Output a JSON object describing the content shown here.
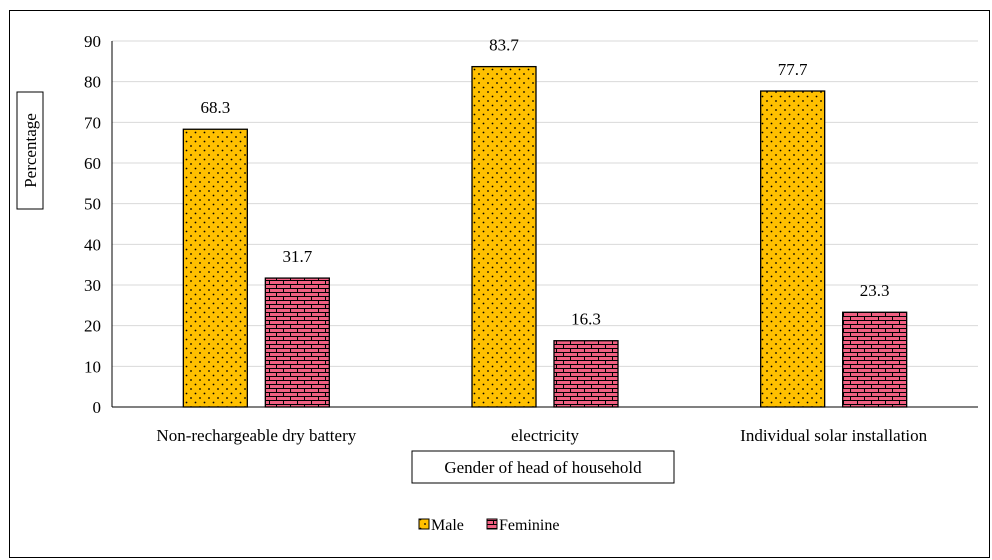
{
  "chart_data": {
    "type": "bar",
    "categories": [
      "Non-rechargeable dry battery",
      "electricity",
      "Individual solar installation"
    ],
    "series": [
      {
        "name": "Male",
        "values": [
          68.3,
          83.7,
          77.7
        ],
        "color": "#FFC000",
        "pattern": "dots"
      },
      {
        "name": "Feminine",
        "values": [
          31.7,
          16.3,
          23.3
        ],
        "color": "#F06082",
        "pattern": "bricks"
      }
    ],
    "ylabel": "Percentage",
    "xlabel": "Gender of head of household",
    "ylim": [
      0,
      90
    ],
    "yticks": [
      0,
      10,
      20,
      30,
      40,
      50,
      60,
      70,
      80,
      90
    ],
    "grid": true,
    "legend": "bottom-center"
  }
}
